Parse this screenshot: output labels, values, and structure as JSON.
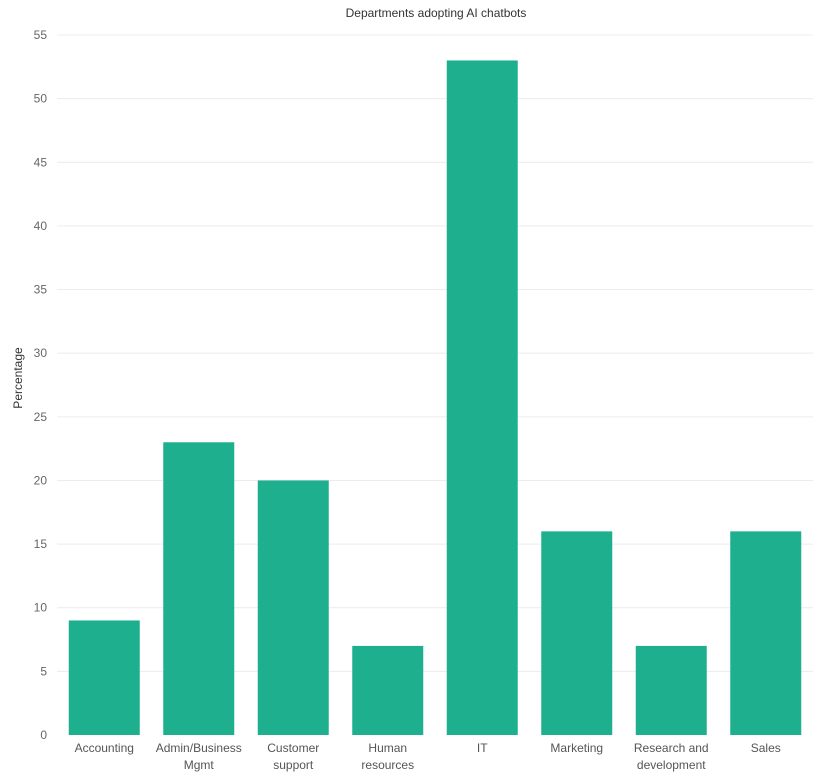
{
  "chart_data": {
    "type": "bar",
    "title": "Departments adopting AI chatbots",
    "xlabel": "",
    "ylabel": "Percentage",
    "categories": [
      [
        "Accounting"
      ],
      [
        "Admin/Business",
        "Mgmt"
      ],
      [
        "Customer",
        "support"
      ],
      [
        "Human",
        "resources"
      ],
      [
        "IT"
      ],
      [
        "Marketing"
      ],
      [
        "Research and",
        "development"
      ],
      [
        "Sales"
      ]
    ],
    "values": [
      9,
      23,
      20,
      7,
      53,
      16,
      7,
      16
    ],
    "ylim": [
      0,
      55
    ],
    "yticks": [
      0,
      5,
      10,
      15,
      20,
      25,
      30,
      35,
      40,
      45,
      50,
      55
    ],
    "grid": true,
    "bar_color": "#1eaf8f"
  }
}
